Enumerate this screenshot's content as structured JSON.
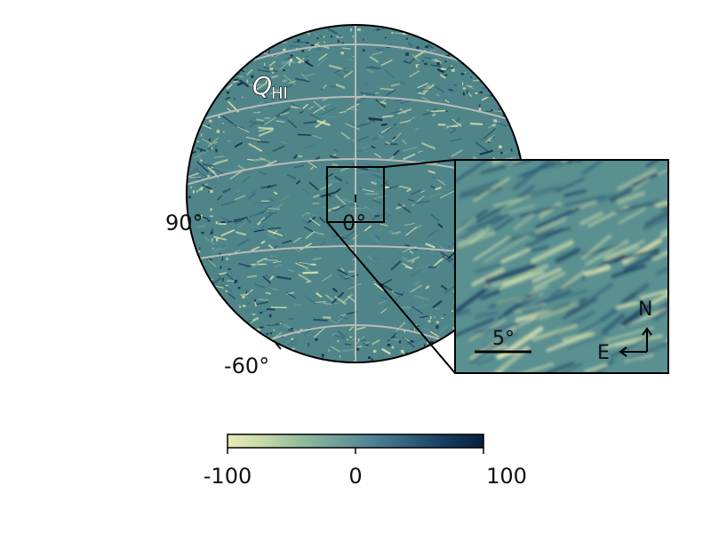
{
  "map": {
    "title_main": "Q",
    "title_sub": "HI",
    "lon_label": "90°",
    "center_label": "0°",
    "lat_label": "-60°"
  },
  "inset": {
    "scale_label": "5°",
    "north_label": "N",
    "east_label": "E"
  },
  "colorbar": {
    "tick_min": "-100",
    "tick_mid": "0",
    "tick_max": "100",
    "vmin": -100,
    "vmax": 100,
    "colors": [
      "#e8ebb4",
      "#c5d8a8",
      "#93bb9c",
      "#6fa09a",
      "#4d8092",
      "#2f5f7a",
      "#16395c",
      "#06213e"
    ]
  },
  "colors": {
    "map_base": "#4f8589",
    "graticule": "#b9b9b9",
    "outline": "#000000"
  }
}
